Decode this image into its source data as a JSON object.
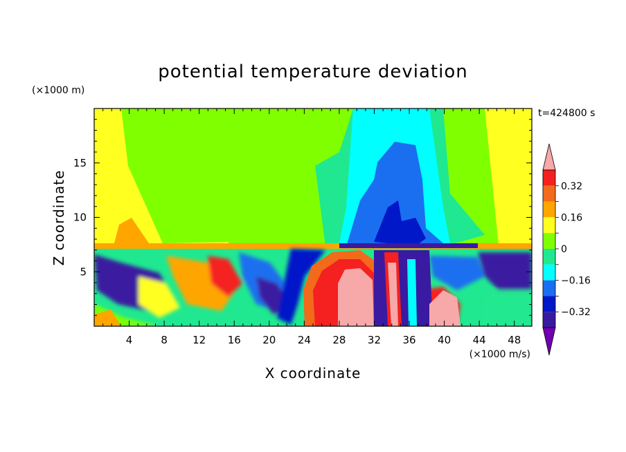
{
  "chart_data": {
    "type": "heatmap",
    "title": "potential temperature deviation",
    "xlabel": "X coordinate",
    "ylabel": "Z coordinate",
    "x_unit": "(×1000 m/s)",
    "y_unit": "(×1000 m)",
    "time_label": "t=424800 s",
    "xlim": [
      0,
      50
    ],
    "ylim": [
      0,
      20
    ],
    "x_ticks": [
      4,
      8,
      12,
      16,
      20,
      24,
      28,
      32,
      36,
      40,
      44,
      48
    ],
    "y_ticks": [
      5,
      10,
      15
    ],
    "colorbar": {
      "ticks": [
        "0.32",
        "0.16",
        "0",
        "−0.16",
        "−0.32"
      ],
      "levels": [
        {
          "range": "> 0.40",
          "color": "#f7a8a8"
        },
        {
          "range": "0.32 to 0.40",
          "color": "#f52020"
        },
        {
          "range": "0.24 to 0.32",
          "color": "#f26a1a"
        },
        {
          "range": "0.16 to 0.24",
          "color": "#ffa500"
        },
        {
          "range": "0.08 to 0.16",
          "color": "#ffff20"
        },
        {
          "range": "0 to 0.08",
          "color": "#80ff00"
        },
        {
          "range": "-0.08 to 0",
          "color": "#20e890"
        },
        {
          "range": "-0.16 to -0.08",
          "color": "#00ffff"
        },
        {
          "range": "-0.24 to -0.16",
          "color": "#1a6ff0"
        },
        {
          "range": "-0.32 to -0.24",
          "color": "#0018c8"
        },
        {
          "range": "-0.40 to -0.32",
          "color": "#3a1aa0"
        },
        {
          "range": "< -0.40",
          "color": "#7000b0"
        }
      ]
    }
  }
}
